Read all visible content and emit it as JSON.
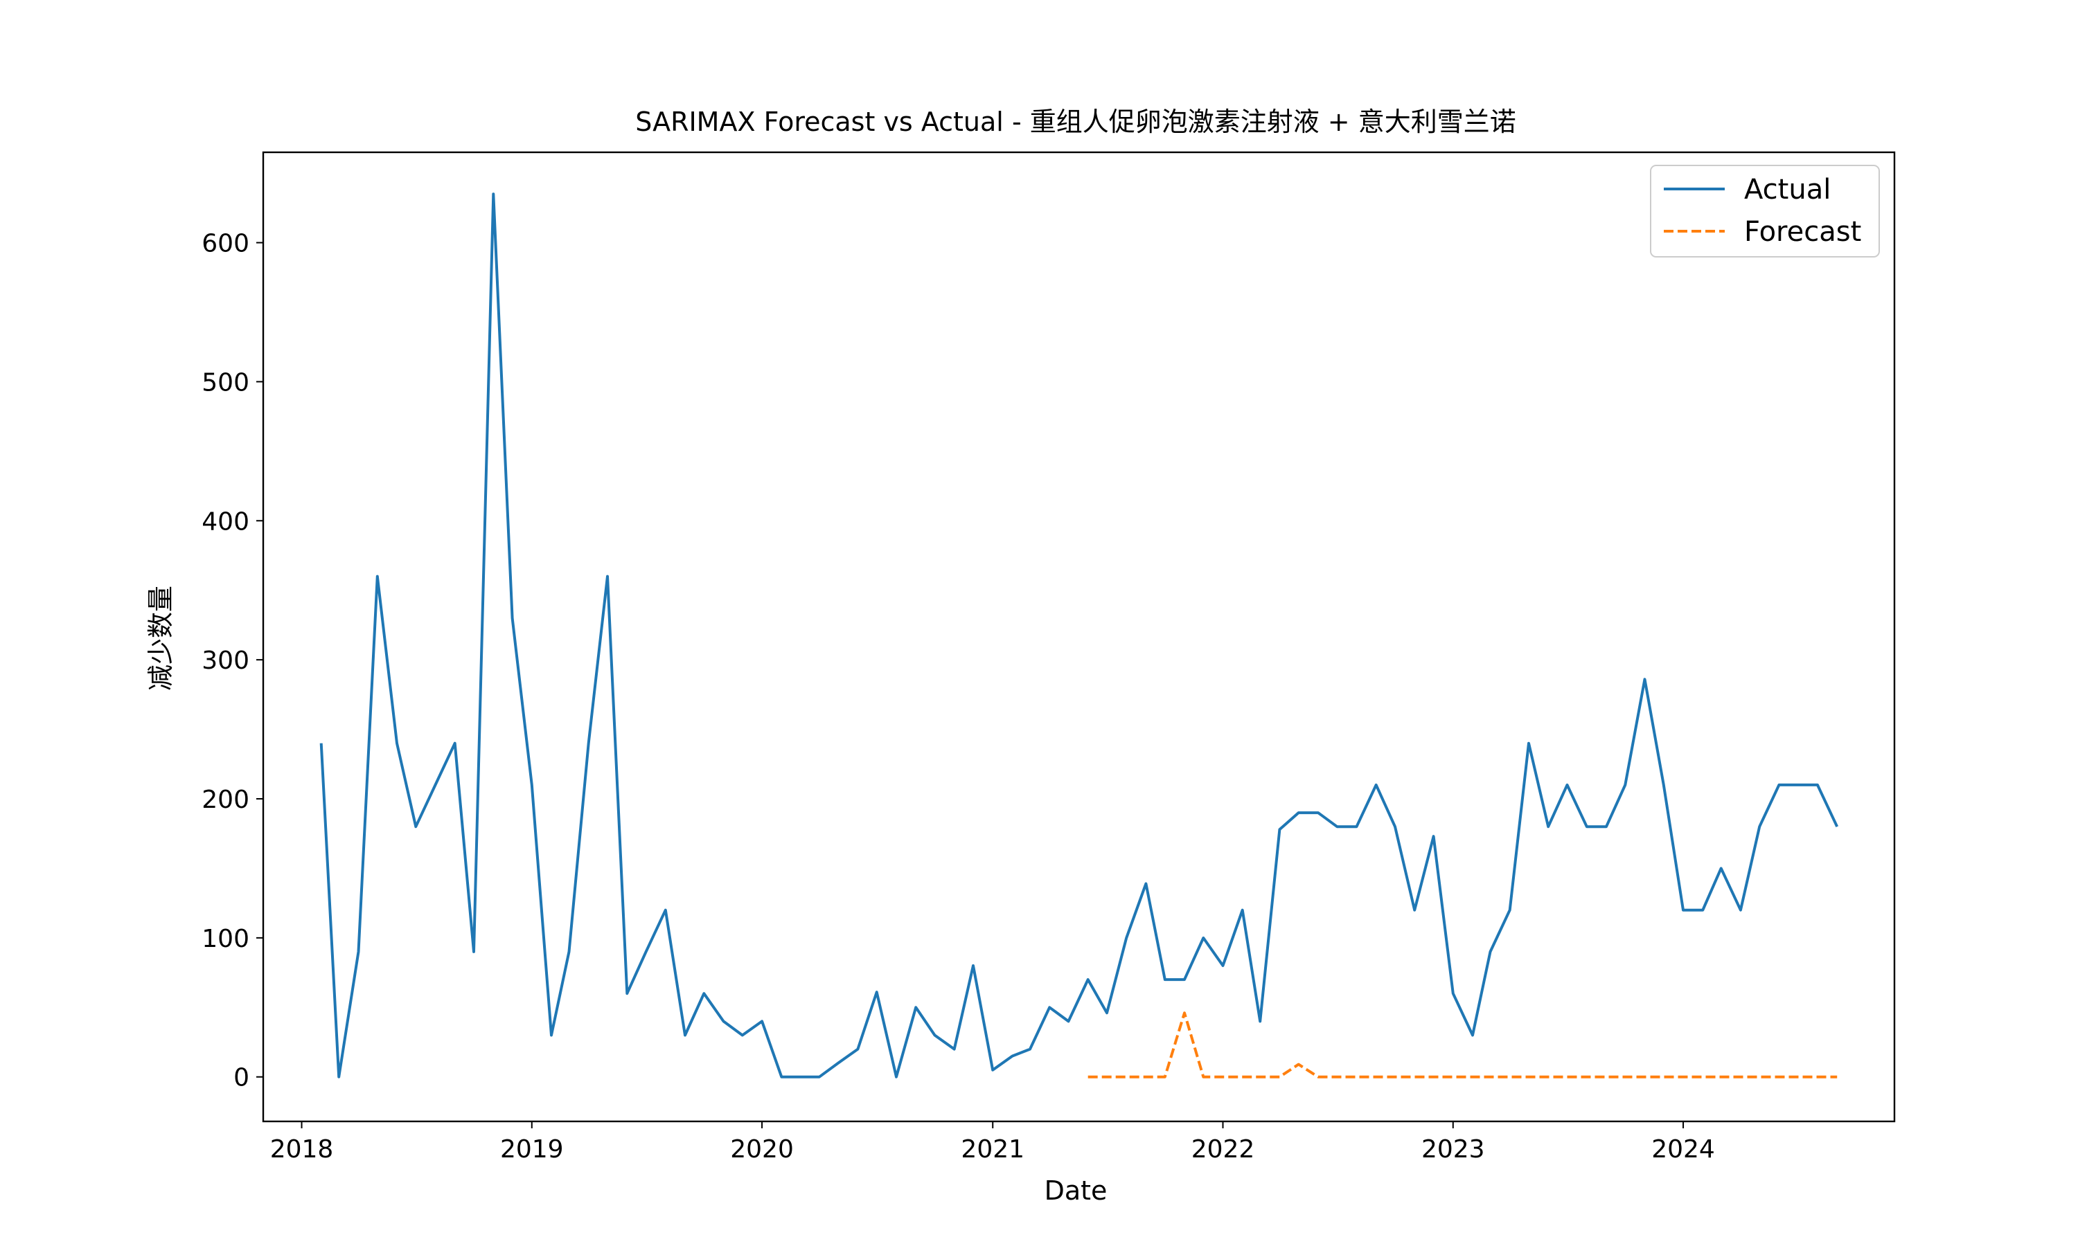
{
  "chart_data": {
    "type": "line",
    "title": "SARIMAX Forecast vs Actual - 重组人促卵泡激素注射液 + 意大利雪兰诺",
    "xlabel": "Date",
    "ylabel": "减少数量",
    "xlim": [
      "2017-11-01",
      "2024-12-01"
    ],
    "ylim": [
      -32,
      665
    ],
    "x_ticks": [
      "2018-01-01",
      "2019-01-01",
      "2020-01-01",
      "2021-01-01",
      "2022-01-01",
      "2023-01-01",
      "2024-01-01"
    ],
    "x_tick_labels": [
      "2018",
      "2019",
      "2020",
      "2021",
      "2022",
      "2023",
      "2024"
    ],
    "y_ticks": [
      0,
      100,
      200,
      300,
      400,
      500,
      600
    ],
    "y_tick_labels": [
      "0",
      "100",
      "200",
      "300",
      "400",
      "500",
      "600"
    ],
    "grid": false,
    "legend_position": "top-right",
    "series": [
      {
        "name": "Actual",
        "color": "#1f77b4",
        "style": "solid",
        "x": [
          "2018-02-01",
          "2018-03-01",
          "2018-04-01",
          "2018-05-01",
          "2018-06-01",
          "2018-07-01",
          "2018-08-01",
          "2018-09-01",
          "2018-10-01",
          "2018-11-01",
          "2018-12-01",
          "2019-01-01",
          "2019-02-01",
          "2019-03-01",
          "2019-04-01",
          "2019-05-01",
          "2019-06-01",
          "2019-07-01",
          "2019-08-01",
          "2019-09-01",
          "2019-10-01",
          "2019-11-01",
          "2019-12-01",
          "2020-01-01",
          "2020-02-01",
          "2020-03-01",
          "2020-04-01",
          "2020-05-01",
          "2020-06-01",
          "2020-07-01",
          "2020-08-01",
          "2020-09-01",
          "2020-10-01",
          "2020-11-01",
          "2020-12-01",
          "2021-01-01",
          "2021-02-01",
          "2021-03-01",
          "2021-04-01",
          "2021-05-01",
          "2021-06-01",
          "2021-07-01",
          "2021-08-01",
          "2021-09-01",
          "2021-10-01",
          "2021-11-01",
          "2021-12-01",
          "2022-01-01",
          "2022-02-01",
          "2022-03-01",
          "2022-04-01",
          "2022-05-01",
          "2022-06-01",
          "2022-07-01",
          "2022-08-01",
          "2022-09-01",
          "2022-10-01",
          "2022-11-01",
          "2022-12-01",
          "2023-01-01",
          "2023-02-01",
          "2023-03-01",
          "2023-04-01",
          "2023-05-01",
          "2023-06-01",
          "2023-07-01",
          "2023-08-01",
          "2023-09-01",
          "2023-10-01",
          "2023-11-01",
          "2023-12-01",
          "2024-01-01",
          "2024-02-01",
          "2024-03-01",
          "2024-04-01",
          "2024-05-01",
          "2024-06-01",
          "2024-07-01",
          "2024-08-01",
          "2024-09-01"
        ],
        "values": [
          240,
          0,
          90,
          360,
          240,
          180,
          210,
          240,
          90,
          635,
          330,
          210,
          30,
          90,
          240,
          360,
          60,
          90,
          120,
          30,
          60,
          40,
          30,
          40,
          0,
          0,
          0,
          10,
          20,
          61,
          0,
          50,
          30,
          20,
          80,
          5,
          15,
          20,
          50,
          40,
          70,
          46,
          100,
          139,
          70,
          70,
          100,
          80,
          120,
          40,
          178,
          190,
          190,
          180,
          180,
          210,
          180,
          120,
          173,
          60,
          30,
          90,
          120,
          240,
          180,
          210,
          180,
          180,
          210,
          286,
          210,
          120,
          120,
          150,
          120,
          180,
          210,
          210,
          210,
          180
        ]
      },
      {
        "name": "Forecast",
        "color": "#ff7f0e",
        "style": "dashed",
        "x": [
          "2021-06-01",
          "2021-07-01",
          "2021-08-01",
          "2021-09-01",
          "2021-10-01",
          "2021-11-01",
          "2021-12-01",
          "2022-01-01",
          "2022-02-01",
          "2022-03-01",
          "2022-04-01",
          "2022-05-01",
          "2022-06-01",
          "2022-07-01",
          "2022-08-01",
          "2022-09-01",
          "2022-10-01",
          "2022-11-01",
          "2022-12-01",
          "2023-01-01",
          "2023-02-01",
          "2023-03-01",
          "2023-04-01",
          "2023-05-01",
          "2023-06-01",
          "2023-07-01",
          "2023-08-01",
          "2023-09-01",
          "2023-10-01",
          "2023-11-01",
          "2023-12-01",
          "2024-01-01",
          "2024-02-01",
          "2024-03-01",
          "2024-04-01",
          "2024-05-01",
          "2024-06-01",
          "2024-07-01",
          "2024-08-01",
          "2024-09-01"
        ],
        "values": [
          0,
          0,
          0,
          0,
          0,
          46,
          0,
          0,
          0,
          0,
          0,
          9,
          0,
          0,
          0,
          0,
          0,
          0,
          0,
          0,
          0,
          0,
          0,
          0,
          0,
          0,
          0,
          0,
          0,
          0,
          0,
          0,
          0,
          0,
          0,
          0,
          0,
          0,
          0,
          0
        ]
      }
    ]
  }
}
